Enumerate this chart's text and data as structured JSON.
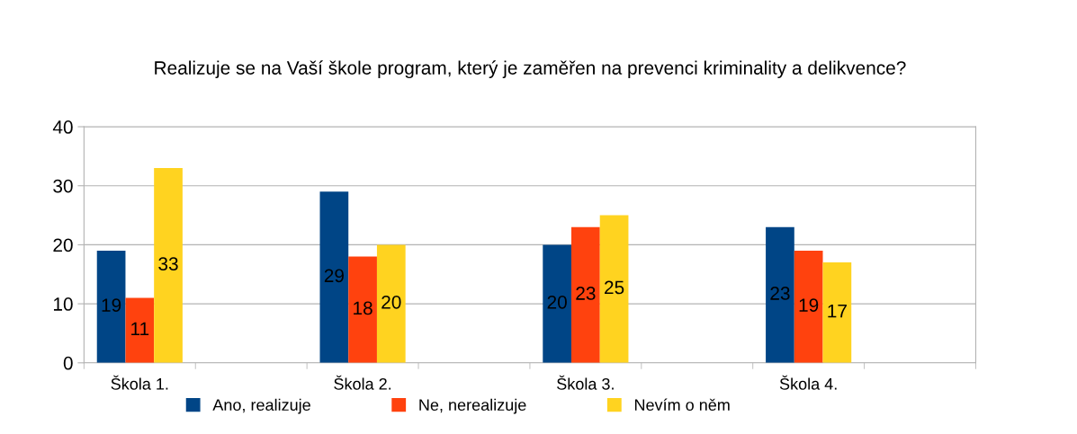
{
  "chart_data": {
    "type": "bar",
    "title": "Realizuje se na Vaší škole program, který je zaměřen na prevenci kriminality a delikvence?",
    "categories": [
      "Škola 1.",
      null,
      "Škola 2.",
      null,
      "Škola 3.",
      null,
      "Škola 4.",
      null
    ],
    "series": [
      {
        "name": "Ano, realizuje",
        "color": "#004586",
        "values": [
          19,
          null,
          29,
          null,
          20,
          null,
          23,
          null
        ]
      },
      {
        "name": "Ne, nerealizuje",
        "color": "#ff420e",
        "values": [
          11,
          null,
          18,
          null,
          23,
          null,
          19,
          null
        ]
      },
      {
        "name": "Nevím o něm",
        "color": "#ffd320",
        "values": [
          33,
          null,
          20,
          null,
          25,
          null,
          17,
          null
        ]
      }
    ],
    "ylim": [
      0,
      40
    ],
    "yticks": [
      0,
      10,
      20,
      30,
      40
    ],
    "grid": "y",
    "legend": "bottom",
    "data_labels": true
  }
}
